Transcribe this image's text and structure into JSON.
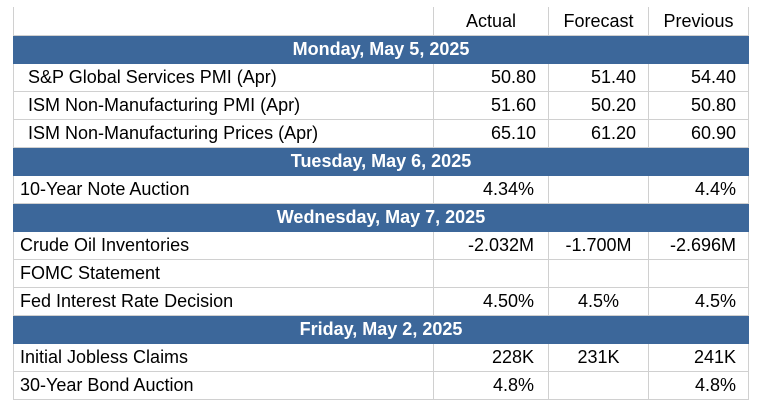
{
  "columns": [
    "",
    "Actual",
    "Forecast",
    "Previous"
  ],
  "sections": [
    {
      "date": "Monday, May 5, 2025",
      "rows": [
        {
          "event": "S&P Global Services PMI (Apr)",
          "actual": "50.80",
          "forecast": "51.40",
          "previous": "54.40"
        },
        {
          "event": "ISM Non-Manufacturing PMI (Apr)",
          "actual": "51.60",
          "forecast": "50.20",
          "previous": "50.80"
        },
        {
          "event": "ISM Non-Manufacturing Prices (Apr)",
          "actual": "65.10",
          "forecast": "61.20",
          "previous": "60.90"
        }
      ]
    },
    {
      "date": "Tuesday, May 6, 2025",
      "rows": [
        {
          "event": "10-Year Note Auction",
          "actual": "4.34%",
          "forecast": "",
          "previous": "4.4%"
        }
      ]
    },
    {
      "date": "Wednesday, May 7, 2025",
      "rows": [
        {
          "event": "Crude Oil Inventories",
          "actual": "-2.032M",
          "forecast": "-1.700M",
          "previous": "-2.696M"
        },
        {
          "event": "FOMC Statement",
          "actual": "",
          "forecast": "",
          "previous": ""
        },
        {
          "event": "Fed Interest Rate Decision",
          "actual": "4.50%",
          "forecast": "4.5%",
          "previous": "4.5%"
        }
      ]
    },
    {
      "date": "Friday, May 2, 2025",
      "rows": [
        {
          "event": "Initial Jobless Claims",
          "actual": "228K",
          "forecast": "231K",
          "previous": "241K"
        },
        {
          "event": "30-Year Bond Auction",
          "actual": "4.8%",
          "forecast": "",
          "previous": "4.8%"
        }
      ]
    }
  ],
  "colors": {
    "section_header": "#3c679a",
    "header_text": "#ffffff",
    "grid": "#d0d0d0"
  }
}
